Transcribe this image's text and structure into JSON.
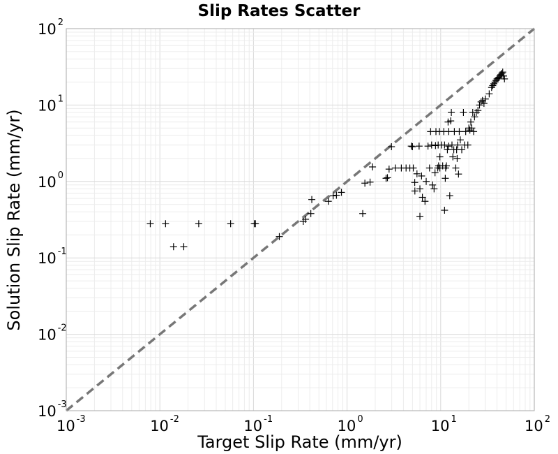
{
  "chart_data": {
    "type": "scatter",
    "title": "Slip Rates Scatter",
    "xlabel": "Target Slip Rate (mm/yr)",
    "ylabel": "Solution Slip Rate (mm/yr)",
    "xscale": "log",
    "yscale": "log",
    "xlim": [
      0.001,
      100
    ],
    "ylim": [
      0.001,
      100
    ],
    "grid": true,
    "marker": "plus",
    "reference_line": {
      "type": "y=x",
      "style": "dashed",
      "color": "#777777"
    },
    "x_ticks": [
      {
        "base": "10",
        "exp": "-3"
      },
      {
        "base": "10",
        "exp": "-2"
      },
      {
        "base": "10",
        "exp": "-1"
      },
      {
        "base": "10",
        "exp": "0"
      },
      {
        "base": "10",
        "exp": "1"
      },
      {
        "base": "10",
        "exp": "2"
      }
    ],
    "y_ticks": [
      {
        "base": "10",
        "exp": "-3"
      },
      {
        "base": "10",
        "exp": "-2"
      },
      {
        "base": "10",
        "exp": "-1"
      },
      {
        "base": "10",
        "exp": "0"
      },
      {
        "base": "10",
        "exp": "1"
      },
      {
        "base": "10",
        "exp": "2"
      }
    ],
    "points": [
      [
        0.0079,
        0.28
      ],
      [
        0.0115,
        0.28
      ],
      [
        0.014,
        0.14
      ],
      [
        0.018,
        0.14
      ],
      [
        0.026,
        0.28
      ],
      [
        0.057,
        0.28
      ],
      [
        0.102,
        0.28
      ],
      [
        0.105,
        0.28
      ],
      [
        0.189,
        0.19
      ],
      [
        0.34,
        0.3
      ],
      [
        0.36,
        0.32
      ],
      [
        0.41,
        0.38
      ],
      [
        0.42,
        0.58
      ],
      [
        0.63,
        0.55
      ],
      [
        0.71,
        0.65
      ],
      [
        0.77,
        0.66
      ],
      [
        0.87,
        0.72
      ],
      [
        1.47,
        0.38
      ],
      [
        1.55,
        0.95
      ],
      [
        1.76,
        0.98
      ],
      [
        1.87,
        1.55
      ],
      [
        2.61,
        1.1
      ],
      [
        2.7,
        1.12
      ],
      [
        2.81,
        1.45
      ],
      [
        2.98,
        2.85
      ],
      [
        3.28,
        1.5
      ],
      [
        3.8,
        1.5
      ],
      [
        4.27,
        1.5
      ],
      [
        4.68,
        1.5
      ],
      [
        4.85,
        2.9
      ],
      [
        5.0,
        2.85
      ],
      [
        5.1,
        1.5
      ],
      [
        5.28,
        0.97
      ],
      [
        5.3,
        0.75
      ],
      [
        5.58,
        1.26
      ],
      [
        5.88,
        2.9
      ],
      [
        6.0,
        0.35
      ],
      [
        6.0,
        0.8
      ],
      [
        6.25,
        1.18
      ],
      [
        6.38,
        0.62
      ],
      [
        6.8,
        0.55
      ],
      [
        7.0,
        1.0
      ],
      [
        7.32,
        2.9
      ],
      [
        7.6,
        1.5
      ],
      [
        7.8,
        4.5
      ],
      [
        8.0,
        3.0
      ],
      [
        8.2,
        0.9
      ],
      [
        8.5,
        0.8
      ],
      [
        8.7,
        1.3
      ],
      [
        8.8,
        2.95
      ],
      [
        8.9,
        4.5
      ],
      [
        9.3,
        1.5
      ],
      [
        9.4,
        3.0
      ],
      [
        9.5,
        1.6
      ],
      [
        9.7,
        4.5
      ],
      [
        9.8,
        2.1
      ],
      [
        9.8,
        1.5
      ],
      [
        10.2,
        3.0
      ],
      [
        10.5,
        1.6
      ],
      [
        10.8,
        4.5
      ],
      [
        11.0,
        3.0
      ],
      [
        11.0,
        0.42
      ],
      [
        11.2,
        1.1
      ],
      [
        11.3,
        1.5
      ],
      [
        11.5,
        1.6
      ],
      [
        11.8,
        2.6
      ],
      [
        12.0,
        6.0
      ],
      [
        12.2,
        4.5
      ],
      [
        12.2,
        2.9
      ],
      [
        12.5,
        0.65
      ],
      [
        12.8,
        6.2
      ],
      [
        13.0,
        8.0
      ],
      [
        13.2,
        3.0
      ],
      [
        13.5,
        2.1
      ],
      [
        13.8,
        2.6
      ],
      [
        14.0,
        4.5
      ],
      [
        14.5,
        1.5
      ],
      [
        14.8,
        2.6
      ],
      [
        15.0,
        2.0
      ],
      [
        15.2,
        3.0
      ],
      [
        15.5,
        1.25
      ],
      [
        15.8,
        4.5
      ],
      [
        16.2,
        3.5
      ],
      [
        16.8,
        2.6
      ],
      [
        17.5,
        8.0
      ],
      [
        18.0,
        3.0
      ],
      [
        18.5,
        4.5
      ],
      [
        19.5,
        3.0
      ],
      [
        20.0,
        5.0
      ],
      [
        20.5,
        4.7
      ],
      [
        21.0,
        6.0
      ],
      [
        21.5,
        5.0
      ],
      [
        22.0,
        8.0
      ],
      [
        22.5,
        4.5
      ],
      [
        23.0,
        7.0
      ],
      [
        24.0,
        8.0
      ],
      [
        25.0,
        8.5
      ],
      [
        26.0,
        10.0
      ],
      [
        27.0,
        11.0
      ],
      [
        28.0,
        11.5
      ],
      [
        29.0,
        10.5
      ],
      [
        30.0,
        12.0
      ],
      [
        33.0,
        14.0
      ],
      [
        35.0,
        17.0
      ],
      [
        36.0,
        18.0
      ],
      [
        37.0,
        19.0
      ],
      [
        38.0,
        20.0
      ],
      [
        39.0,
        21.0
      ],
      [
        40.0,
        22.0
      ],
      [
        41.0,
        22.5
      ],
      [
        42.0,
        23.0
      ],
      [
        43.0,
        24.0
      ],
      [
        44.0,
        25.0
      ],
      [
        45.0,
        26.0
      ],
      [
        46.0,
        27.0
      ],
      [
        47.0,
        24.0
      ],
      [
        48.0,
        22.0
      ]
    ]
  }
}
